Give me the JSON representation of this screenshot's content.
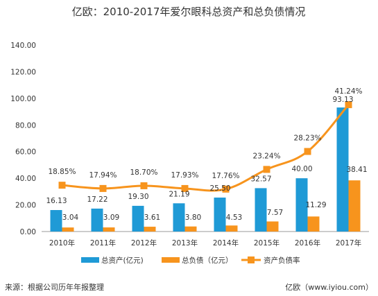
{
  "chart_data": {
    "type": "bar",
    "title": "亿欧：2010-2017年爱尔眼科总资产和总负债情况",
    "categories": [
      "2010年",
      "2011年",
      "2012年",
      "2013年",
      "2014年",
      "2015年",
      "2016年",
      "2017年"
    ],
    "series": [
      {
        "name": "总资产(亿元)",
        "type": "bar",
        "color": "#1f9ad6",
        "axis": "left",
        "values": [
          16.13,
          17.22,
          19.3,
          21.19,
          25.5,
          32.57,
          40.0,
          93.13
        ],
        "labels": [
          "16.13",
          "17.22",
          "19.30",
          "21.19",
          "25.50",
          "32.57",
          "40.00",
          "93.13"
        ]
      },
      {
        "name": "总负债（亿元）",
        "type": "bar",
        "color": "#f7941d",
        "axis": "left",
        "values": [
          3.04,
          3.09,
          3.61,
          3.8,
          4.53,
          7.57,
          11.29,
          38.41
        ],
        "labels": [
          "3.04",
          "3.09",
          "3.61",
          "3.80",
          "4.53",
          "7.57",
          "11.29",
          "38.41"
        ]
      },
      {
        "name": "资产负债率",
        "type": "line",
        "color": "#f7941d",
        "axis": "percent",
        "values": [
          18.85,
          17.94,
          18.7,
          17.93,
          17.76,
          23.24,
          28.23,
          41.24
        ],
        "labels": [
          "18.85%",
          "17.94%",
          "18.70%",
          "17.93%",
          "17.76%",
          "23.24%",
          "28.23%",
          "41.24%"
        ]
      }
    ],
    "y_ticks": [
      "0.00",
      "20.00",
      "40.00",
      "60.00",
      "80.00",
      "100.00",
      "120.00",
      "140.00"
    ],
    "ylim": [
      0,
      140
    ],
    "percent_axis_hidden": true,
    "legend_position": "bottom",
    "grid": false
  },
  "footer": {
    "source": "来源：根据公司历年年报整理",
    "credit": "亿欧（www.iyiou.com）"
  }
}
